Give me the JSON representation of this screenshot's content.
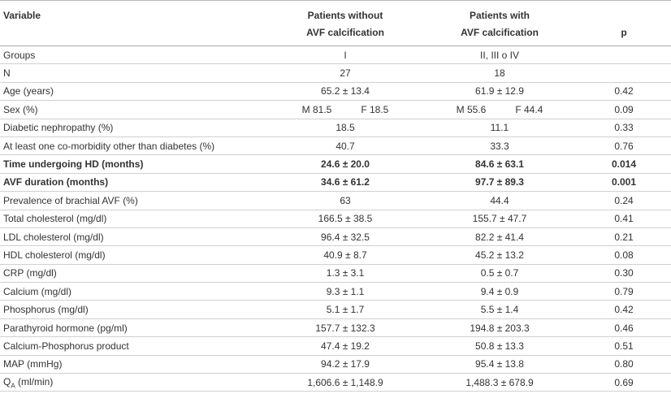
{
  "table": {
    "header": {
      "variable": "Variable",
      "without": [
        "Patients without",
        "AVF calcification"
      ],
      "with": [
        "Patients with",
        "AVF calcification"
      ],
      "p": "p"
    },
    "rows": [
      {
        "variable": "Groups",
        "without": "I",
        "with": "II, III o IV"
      },
      {
        "variable": "N",
        "without": "27",
        "with": "18"
      },
      {
        "variable": "Age (years)",
        "without": "65.2 ± 13.4",
        "with": "61.9 ± 12.9",
        "p": "0.42"
      },
      {
        "variable": "Sex (%)",
        "without": [
          "M 81.5",
          "F 18.5"
        ],
        "with": [
          "M 55.6",
          "F 44.4"
        ],
        "p": "0.09"
      },
      {
        "variable": "Diabetic nephropathy (%)",
        "without": "18.5",
        "with": "11.1",
        "p": "0.33"
      },
      {
        "variable": "At least one co-morbidity other than diabetes (%)",
        "without": "40.7",
        "with": "33.3",
        "p": "0.76"
      },
      {
        "variable": "Time undergoing HD (months)",
        "without": "24.6 ± 20.0",
        "with": "84.6 ± 63.1",
        "p": "0.014",
        "bold": true
      },
      {
        "variable": "AVF duration (months)",
        "without": "34.6 ± 61.2",
        "with": "97.7 ± 89.3",
        "p": "0.001",
        "bold": true
      },
      {
        "variable": "Prevalence of brachial AVF (%)",
        "without": "63",
        "with": "44.4",
        "p": "0.24"
      },
      {
        "variable": "Total cholesterol (mg/dl)",
        "without": "166.5 ± 38.5",
        "with": "155.7 ± 47.7",
        "p": "0.41"
      },
      {
        "variable": "LDL cholesterol (mg/dl)",
        "without": "96.4 ± 32.5",
        "with": "82.2 ± 41.4",
        "p": "0.21"
      },
      {
        "variable": "HDL cholesterol (mg/dl)",
        "without": "40.9 ± 8.7",
        "with": "45.2 ± 13.2",
        "p": "0.08"
      },
      {
        "variable": "CRP (mg/dl)",
        "without": "1.3 ± 3.1",
        "with": "0.5 ± 0.7",
        "p": "0.30"
      },
      {
        "variable": "Calcium (mg/dl)",
        "without": "9.3 ± 1.1",
        "with": "9.4 ± 0.9",
        "p": "0.79"
      },
      {
        "variable": "Phosphorus (mg/dl)",
        "without": "5.1 ± 1.7",
        "with": "5.5 ± 1.4",
        "p": "0.42"
      },
      {
        "variable": "Parathyroid hormone (pg/ml)",
        "without": "157.7 ± 132.3",
        "with": "194.8 ± 203.3",
        "p": "0.46"
      },
      {
        "variable": "Calcium-Phosphorus product",
        "without": "47.4 ± 19.2",
        "with": "50.8 ± 13.3",
        "p": "0.51"
      },
      {
        "variable": "MAP (mmHg)",
        "without": "94.2 ± 17.9",
        "with": "95.4 ± 13.8",
        "p": "0.80"
      },
      {
        "variable": {
          "main": "Q",
          "sub": "A",
          "rest": " (ml/min)"
        },
        "without": "1,606.6 ± 1,148.9",
        "with": "1,488.3 ± 678.9",
        "p": "0.69"
      }
    ]
  }
}
